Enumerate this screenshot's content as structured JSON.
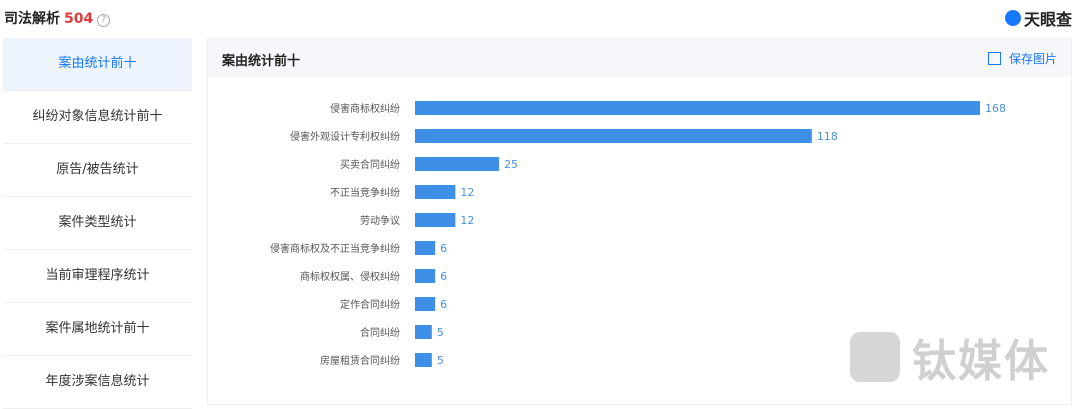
{
  "header": {
    "title": "司法解析",
    "count": "504",
    "logo": "天眼查"
  },
  "sidebar": {
    "items": [
      "案由统计前十",
      "纠纷对象信息统计前十",
      "原告/被告统计",
      "案件类型统计",
      "当前审理程序统计",
      "案件属地统计前十",
      "年度涉案信息统计"
    ],
    "active": 0
  },
  "panel": {
    "title": "案由统计前十",
    "save_button": "保存图片"
  },
  "chart_data": {
    "type": "hbar",
    "color": "#3d8fe8",
    "categories": [
      "侵害商标权纠纷",
      "侵害外观设计专利权纠纷",
      "买卖合同纠纷",
      "不正当竞争纠纷",
      "劳动争议",
      "侵害商标权及不正当竞争纠纷",
      "商标权权属、侵权纠纷",
      "定作合同纠纷",
      "合同纠纷",
      "房屋租赁合同纠纷"
    ],
    "values": [
      168,
      118,
      25,
      12,
      12,
      6,
      6,
      6,
      5,
      5
    ]
  },
  "watermark": "钛媒体"
}
